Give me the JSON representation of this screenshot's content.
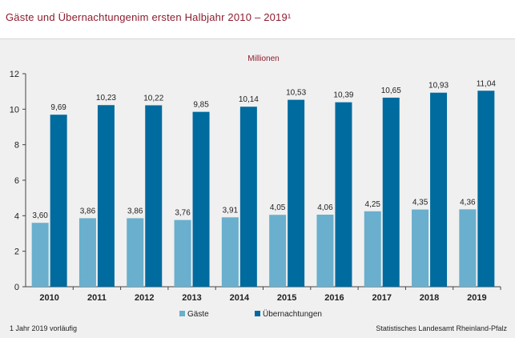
{
  "header": {
    "title": "Gäste und Übernachtungenim ersten Halbjahr 2010 – 2019¹"
  },
  "footnote": "1 Jahr 2019 vorläufig",
  "source": "Statistisches Landesamt Rheinland-Pfalz",
  "colors": {
    "gaeste": "#6aafcd",
    "uebernachtungen": "#006b9f",
    "unit_label": "#8c1d2e",
    "background": "#f0f0f0"
  },
  "chart_data": {
    "type": "bar",
    "unit_label": "Millionen",
    "categories": [
      "2010",
      "2011",
      "2012",
      "2013",
      "2014",
      "2015",
      "2016",
      "2017",
      "2018",
      "2019"
    ],
    "series": [
      {
        "name": "Gäste",
        "values": [
          3.6,
          3.86,
          3.86,
          3.76,
          3.91,
          4.05,
          4.06,
          4.25,
          4.35,
          4.36
        ],
        "labels": [
          "3,60",
          "3,86",
          "3,86",
          "3,76",
          "3,91",
          "4,05",
          "4,06",
          "4,25",
          "4,35",
          "4,36"
        ]
      },
      {
        "name": "Übernachtungen",
        "values": [
          9.69,
          10.23,
          10.22,
          9.85,
          10.14,
          10.53,
          10.39,
          10.65,
          10.93,
          11.04
        ],
        "labels": [
          "9,69",
          "10,23",
          "10,22",
          "9,85",
          "10,14",
          "10,53",
          "10,39",
          "10,65",
          "10,93",
          "11,04"
        ]
      }
    ],
    "ylim": [
      0,
      12
    ],
    "yticks": [
      "0",
      "2",
      "4",
      "6",
      "8",
      "10",
      "12"
    ],
    "grid": false,
    "legend": "bottom-center"
  }
}
